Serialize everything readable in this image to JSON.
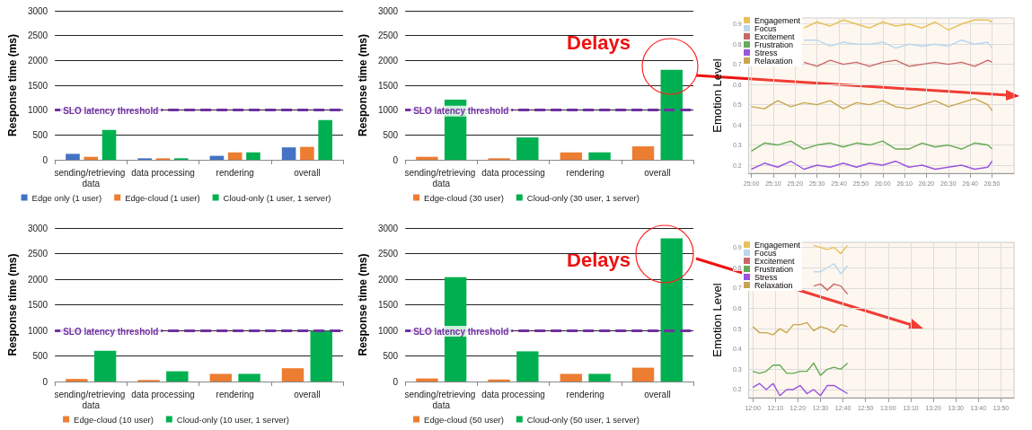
{
  "chart_data": [
    {
      "type": "bar",
      "ylabel": "Response time (ms)",
      "categories": [
        "sending/retrieving data",
        "data processing",
        "rendering",
        "overall"
      ],
      "ylim": [
        0,
        3000
      ],
      "yticks": [
        0,
        500,
        1000,
        1500,
        2000,
        2500,
        3000
      ],
      "grid": "y",
      "legend": "bottom",
      "series": [
        {
          "name": "Edge only (1 user)",
          "color": "#4472c4",
          "values": [
            120,
            30,
            80,
            250
          ]
        },
        {
          "name": "Edge-cloud (1 user)",
          "color": "#ed7d31",
          "values": [
            60,
            30,
            150,
            260
          ]
        },
        {
          "name": "Cloud-only (1 user, 1 server)",
          "color": "#00b050",
          "values": [
            600,
            30,
            150,
            800
          ]
        }
      ],
      "ref_lines": [
        {
          "axis": "y",
          "value": 1000,
          "label": "SLO latency threshold",
          "color": "#7030a0",
          "line_style": "dashed"
        }
      ]
    },
    {
      "type": "bar",
      "ylabel": "Response time (ms)",
      "categories": [
        "sending/retrieving data",
        "data processing",
        "rendering",
        "overall"
      ],
      "ylim": [
        0,
        3000
      ],
      "yticks": [
        0,
        500,
        1000,
        1500,
        2000,
        2500,
        3000
      ],
      "grid": "y",
      "legend": "bottom",
      "series": [
        {
          "name": "Edge-cloud (30 user)",
          "color": "#ed7d31",
          "values": [
            60,
            30,
            150,
            270
          ]
        },
        {
          "name": "Cloud-only (30 user, 1 server)",
          "color": "#00b050",
          "values": [
            1210,
            450,
            150,
            1810
          ]
        }
      ],
      "ref_lines": [
        {
          "axis": "y",
          "value": 1000,
          "label": "SLO latency threshold",
          "color": "#7030a0",
          "line_style": "dashed"
        }
      ],
      "annotations": [
        "Delays"
      ]
    },
    {
      "type": "line",
      "ylabel": "Emotion Level",
      "xlim": [
        24.98,
        27.0
      ],
      "ylim": [
        0.16,
        0.93
      ],
      "yticks": [
        0.2,
        0.3,
        0.4,
        0.5,
        0.6,
        0.7,
        0.8,
        0.9
      ],
      "grid": true,
      "legend": "top left",
      "marker": "none",
      "xticks": [
        {
          "value": 25,
          "label": "25:00"
        },
        {
          "value": 25.1667,
          "label": "25:10"
        },
        {
          "value": 25.3333,
          "label": "25:20"
        },
        {
          "value": 25.5,
          "label": "25:30"
        },
        {
          "value": 25.6667,
          "label": "25:40"
        },
        {
          "value": 25.8333,
          "label": "25:50"
        },
        {
          "value": 26,
          "label": "26:00"
        },
        {
          "value": 26.1667,
          "label": "26:10"
        },
        {
          "value": 26.3333,
          "label": "26:20"
        },
        {
          "value": 26.5,
          "label": "26:30"
        },
        {
          "value": 26.6667,
          "label": "26:40"
        },
        {
          "value": 26.8333,
          "label": "26:50"
        }
      ],
      "x": [
        25.0,
        25.1,
        25.2,
        25.3,
        25.4,
        25.5,
        25.6,
        25.7,
        25.8,
        25.9,
        26.0,
        26.1,
        26.2,
        26.3,
        26.4,
        26.5,
        26.6,
        26.7,
        26.8,
        26.8333
      ],
      "series": [
        {
          "name": "Engagement",
          "color": "#e8c15a",
          "values": [
            null,
            null,
            null,
            null,
            0.88,
            0.91,
            0.89,
            0.92,
            0.9,
            0.88,
            0.91,
            0.89,
            0.9,
            0.88,
            0.91,
            0.87,
            0.9,
            0.92,
            0.92,
            0.91
          ]
        },
        {
          "name": "Focus",
          "color": "#b9d7ef",
          "values": [
            null,
            null,
            null,
            null,
            0.82,
            0.82,
            0.79,
            0.81,
            0.8,
            0.8,
            0.81,
            0.78,
            0.8,
            0.79,
            0.8,
            0.79,
            0.82,
            0.8,
            0.81,
            0.78
          ]
        },
        {
          "name": "Excitement",
          "color": "#cc6666",
          "values": [
            null,
            null,
            null,
            null,
            0.71,
            0.69,
            0.72,
            0.7,
            0.71,
            0.69,
            0.71,
            0.72,
            0.69,
            0.7,
            0.71,
            0.7,
            0.71,
            0.69,
            0.72,
            0.71
          ]
        },
        {
          "name": "Frustration",
          "color": "#66aa55",
          "values": [
            0.27,
            0.31,
            0.3,
            0.32,
            0.28,
            0.3,
            0.31,
            0.29,
            0.31,
            0.3,
            0.32,
            0.28,
            0.28,
            0.31,
            0.29,
            0.3,
            0.28,
            0.31,
            0.3,
            0.28
          ]
        },
        {
          "name": "Stress",
          "color": "#9955dd",
          "values": [
            0.18,
            0.21,
            0.19,
            0.22,
            0.18,
            0.2,
            0.19,
            0.21,
            0.19,
            0.21,
            0.2,
            0.22,
            0.19,
            0.2,
            0.18,
            0.19,
            0.2,
            0.18,
            0.19,
            0.22
          ]
        },
        {
          "name": "Relaxation",
          "color": "#c8a44f",
          "values": [
            0.49,
            0.48,
            0.52,
            0.49,
            0.51,
            0.5,
            0.52,
            0.48,
            0.51,
            0.5,
            0.52,
            0.49,
            0.48,
            0.5,
            0.52,
            0.49,
            0.51,
            0.53,
            0.5,
            0.47
          ]
        }
      ]
    },
    {
      "type": "bar",
      "ylabel": "Response time (ms)",
      "categories": [
        "sending/retrieving data",
        "data processing",
        "rendering",
        "overall"
      ],
      "ylim": [
        0,
        3000
      ],
      "yticks": [
        0,
        500,
        1000,
        1500,
        2000,
        2500,
        3000
      ],
      "grid": "y",
      "legend": "bottom",
      "series": [
        {
          "name": "Edge-cloud (10 user)",
          "color": "#ed7d31",
          "values": [
            50,
            30,
            150,
            260
          ]
        },
        {
          "name": "Cloud-only (10 user, 1 server)",
          "color": "#00b050",
          "values": [
            600,
            200,
            150,
            990
          ]
        }
      ],
      "ref_lines": [
        {
          "axis": "y",
          "value": 1000,
          "label": "SLO latency threshold",
          "color": "#7030a0",
          "line_style": "dashed"
        }
      ]
    },
    {
      "type": "bar",
      "ylabel": "Response time (ms)",
      "categories": [
        "sending/retrieving data",
        "data processing",
        "rendering",
        "overall"
      ],
      "ylim": [
        0,
        3000
      ],
      "yticks": [
        0,
        500,
        1000,
        1500,
        2000,
        2500,
        3000
      ],
      "grid": "y",
      "legend": "bottom",
      "series": [
        {
          "name": "Edge-cloud (50 user)",
          "color": "#ed7d31",
          "values": [
            60,
            40,
            150,
            270
          ]
        },
        {
          "name": "Cloud-only (50 user, 1 server)",
          "color": "#00b050",
          "values": [
            2040,
            590,
            150,
            2800
          ]
        }
      ],
      "ref_lines": [
        {
          "axis": "y",
          "value": 1000,
          "label": "SLO latency threshold",
          "color": "#7030a0",
          "line_style": "dashed"
        }
      ],
      "annotations": [
        "Delays"
      ]
    },
    {
      "type": "line",
      "ylabel": "Emotion Level",
      "xlim": [
        11.97,
        13.93
      ],
      "ylim": [
        0.16,
        0.925
      ],
      "yticks": [
        0.2,
        0.3,
        0.4,
        0.5,
        0.6,
        0.7,
        0.8,
        0.9
      ],
      "grid": true,
      "legend": "top left",
      "marker": "none",
      "xticks": [
        {
          "value": 12,
          "label": "12:00"
        },
        {
          "value": 12.1667,
          "label": "12:10"
        },
        {
          "value": 12.3333,
          "label": "12:20"
        },
        {
          "value": 12.5,
          "label": "12:30"
        },
        {
          "value": 12.6667,
          "label": "12:40"
        },
        {
          "value": 12.8333,
          "label": "12:50"
        },
        {
          "value": 13,
          "label": "13:00"
        },
        {
          "value": 13.1667,
          "label": "13:10"
        },
        {
          "value": 13.3333,
          "label": "13:20"
        },
        {
          "value": 13.5,
          "label": "13:30"
        },
        {
          "value": 13.6667,
          "label": "13:40"
        },
        {
          "value": 13.8333,
          "label": "13:50"
        }
      ],
      "x": [
        12.0,
        12.05,
        12.1,
        12.15,
        12.2,
        12.25,
        12.3,
        12.35,
        12.4,
        12.45,
        12.5,
        12.55,
        12.6,
        12.65,
        12.7
      ],
      "series": [
        {
          "name": "Engagement",
          "color": "#e8c15a",
          "values": [
            null,
            null,
            null,
            null,
            null,
            null,
            null,
            null,
            null,
            0.91,
            0.9,
            0.89,
            0.9,
            0.87,
            0.91
          ]
        },
        {
          "name": "Focus",
          "color": "#b9d7ef",
          "values": [
            null,
            null,
            null,
            null,
            null,
            null,
            null,
            null,
            null,
            0.78,
            0.78,
            0.8,
            0.82,
            0.77,
            0.81
          ]
        },
        {
          "name": "Excitement",
          "color": "#cc6666",
          "values": [
            null,
            null,
            null,
            null,
            null,
            null,
            null,
            null,
            null,
            0.71,
            0.72,
            0.69,
            0.72,
            0.71,
            0.67
          ]
        },
        {
          "name": "Frustration",
          "color": "#66aa55",
          "values": [
            0.29,
            0.28,
            0.29,
            0.32,
            0.32,
            0.28,
            0.28,
            0.29,
            0.29,
            0.33,
            0.27,
            0.3,
            0.31,
            0.3,
            0.33
          ]
        },
        {
          "name": "Stress",
          "color": "#9955dd",
          "values": [
            0.21,
            0.23,
            0.2,
            0.23,
            0.17,
            0.2,
            0.2,
            0.22,
            0.18,
            0.2,
            0.17,
            0.22,
            0.22,
            0.2,
            0.18
          ]
        },
        {
          "name": "Relaxation",
          "color": "#c8a44f",
          "values": [
            0.51,
            0.48,
            0.48,
            0.47,
            0.5,
            0.48,
            0.52,
            0.52,
            0.53,
            0.49,
            0.51,
            0.5,
            0.48,
            0.52,
            0.51
          ]
        }
      ]
    }
  ]
}
